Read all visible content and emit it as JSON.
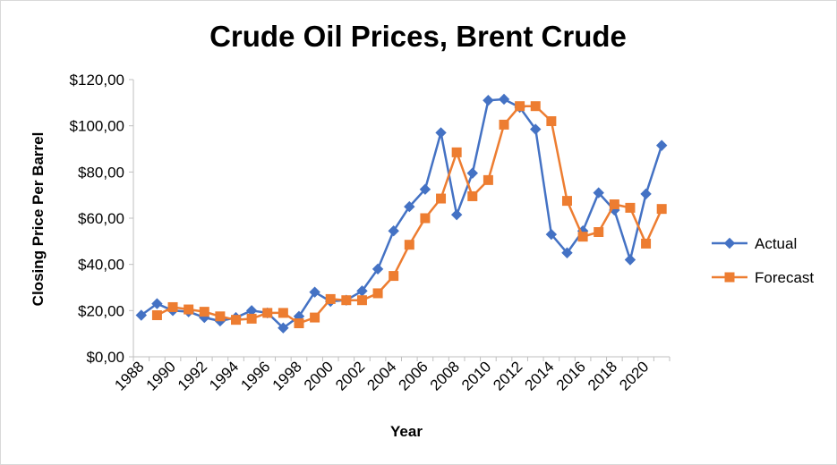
{
  "chart_data": {
    "type": "line",
    "title": "Crude Oil Prices, Brent Crude",
    "xlabel": "Year",
    "ylabel": "Closing Price Per Barrel",
    "ylim": [
      0,
      120
    ],
    "yticks": [
      0,
      20,
      40,
      60,
      80,
      100,
      120
    ],
    "ytick_labels": [
      "$0,00",
      "$20,00",
      "$40,00",
      "$60,00",
      "$80,00",
      "$100,00",
      "$120,00"
    ],
    "xlim": [
      1988,
      2021
    ],
    "xtick_labels": [
      "1988",
      "1990",
      "1992",
      "1994",
      "1996",
      "1998",
      "2000",
      "2002",
      "2004",
      "2006",
      "2008",
      "2010",
      "2012",
      "2014",
      "2016",
      "2018",
      "2020"
    ],
    "grid": false,
    "legend_position": "right",
    "series": [
      {
        "name": "Actual",
        "color": "#4472C4",
        "marker": "diamond",
        "x": [
          1988,
          1989,
          1990,
          1991,
          1992,
          1993,
          1994,
          1995,
          1996,
          1997,
          1998,
          1999,
          2000,
          2001,
          2002,
          2003,
          2004,
          2005,
          2006,
          2007,
          2008,
          2009,
          2010,
          2011,
          2012,
          2013,
          2014,
          2015,
          2016,
          2017,
          2018,
          2019,
          2020,
          2021
        ],
        "values": [
          18.0,
          23.0,
          20.0,
          19.5,
          17.0,
          15.5,
          17.0,
          20.0,
          19.0,
          12.5,
          17.5,
          28.0,
          24.0,
          24.5,
          28.5,
          38.0,
          54.5,
          65.0,
          72.5,
          97.0,
          61.5,
          79.5,
          111.0,
          111.5,
          108.0,
          98.5,
          53.0,
          45.0,
          54.5,
          71.0,
          63.5,
          42.0,
          70.5,
          91.5
        ]
      },
      {
        "name": "Forecast",
        "color": "#ED7D31",
        "marker": "square",
        "x": [
          1989,
          1990,
          1991,
          1992,
          1993,
          1994,
          1995,
          1996,
          1997,
          1998,
          1999,
          2000,
          2001,
          2002,
          2003,
          2004,
          2005,
          2006,
          2007,
          2008,
          2009,
          2010,
          2011,
          2012,
          2013,
          2014,
          2015,
          2016,
          2017,
          2018,
          2019,
          2020,
          2021
        ],
        "values": [
          18.0,
          21.5,
          20.5,
          19.5,
          17.5,
          16.0,
          16.5,
          19.0,
          19.0,
          14.5,
          17.0,
          25.0,
          24.5,
          24.5,
          27.5,
          35.0,
          48.5,
          60.0,
          68.5,
          88.5,
          69.5,
          76.5,
          100.5,
          108.5,
          108.5,
          102.0,
          67.5,
          52.0,
          54.0,
          66.0,
          64.5,
          49.0,
          64.0
        ]
      }
    ]
  }
}
